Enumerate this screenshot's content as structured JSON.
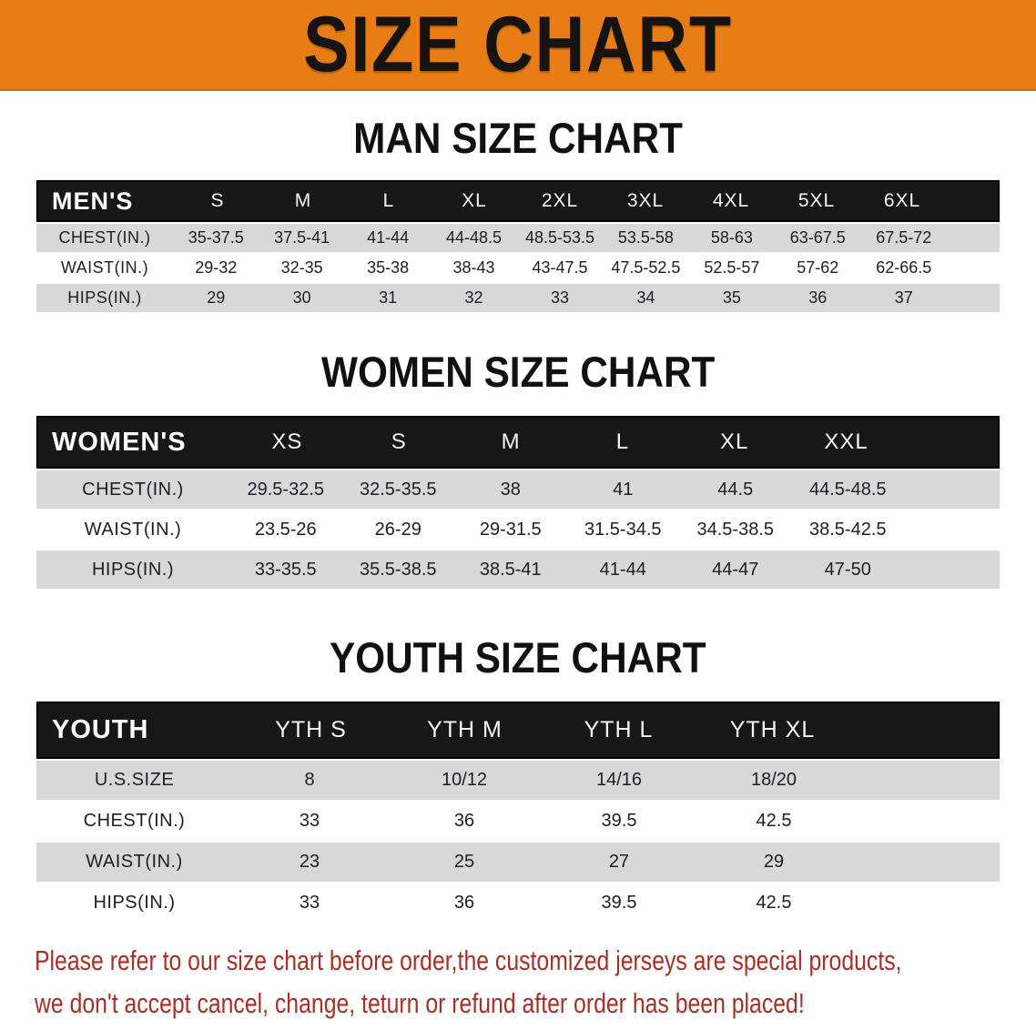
{
  "colors": {
    "banner_orange": "#e87d15",
    "bar_black": "#171717",
    "row_gray": "#d8d8d8",
    "row_white": "#ffffff",
    "note_red": "#a53028"
  },
  "banner": {
    "title": "SIZE CHART"
  },
  "men": {
    "heading": "MAN SIZE CHART",
    "header_label": "MEN'S",
    "columns": [
      "S",
      "M",
      "L",
      "XL",
      "2XL",
      "3XL",
      "4XL",
      "5XL",
      "6XL"
    ],
    "rows": [
      {
        "label": "CHEST(IN.)",
        "values": [
          "35-37.5",
          "37.5-41",
          "41-44",
          "44-48.5",
          "48.5-53.5",
          "53.5-58",
          "58-63",
          "63-67.5",
          "67.5-72"
        ]
      },
      {
        "label": "WAIST(IN.)",
        "values": [
          "29-32",
          "32-35",
          "35-38",
          "38-43",
          "43-47.5",
          "47.5-52.5",
          "52.5-57",
          "57-62",
          "62-66.5"
        ]
      },
      {
        "label": "HIPS(IN.)",
        "values": [
          "29",
          "30",
          "31",
          "32",
          "33",
          "34",
          "35",
          "36",
          "37"
        ]
      }
    ]
  },
  "women": {
    "heading": "WOMEN SIZE CHART",
    "header_label": "WOMEN'S",
    "columns": [
      "XS",
      "S",
      "M",
      "L",
      "XL",
      "XXL"
    ],
    "rows": [
      {
        "label": "CHEST(IN.)",
        "values": [
          "29.5-32.5",
          "32.5-35.5",
          "38",
          "41",
          "44.5",
          "44.5-48.5"
        ]
      },
      {
        "label": "WAIST(IN.)",
        "values": [
          "23.5-26",
          "26-29",
          "29-31.5",
          "31.5-34.5",
          "34.5-38.5",
          "38.5-42.5"
        ]
      },
      {
        "label": "HIPS(IN.)",
        "values": [
          "33-35.5",
          "35.5-38.5",
          "38.5-41",
          "41-44",
          "44-47",
          "47-50"
        ]
      }
    ]
  },
  "youth": {
    "heading": "YOUTH SIZE CHART",
    "header_label": "YOUTH",
    "columns": [
      "YTH S",
      "YTH M",
      "YTH L",
      "YTH XL"
    ],
    "rows": [
      {
        "label": "U.S.SIZE",
        "values": [
          "8",
          "10/12",
          "14/16",
          "18/20"
        ]
      },
      {
        "label": "CHEST(IN.)",
        "values": [
          "33",
          "36",
          "39.5",
          "42.5"
        ]
      },
      {
        "label": "WAIST(IN.)",
        "values": [
          "23",
          "25",
          "27",
          "29"
        ]
      },
      {
        "label": "HIPS(IN.)",
        "values": [
          "33",
          "36",
          "39.5",
          "42.5"
        ]
      }
    ]
  },
  "footer": {
    "line1": "Please refer to our size chart before order,the customized jerseys are special products,",
    "line2": "we don't accept cancel, change, teturn or refund after order has been placed!"
  }
}
